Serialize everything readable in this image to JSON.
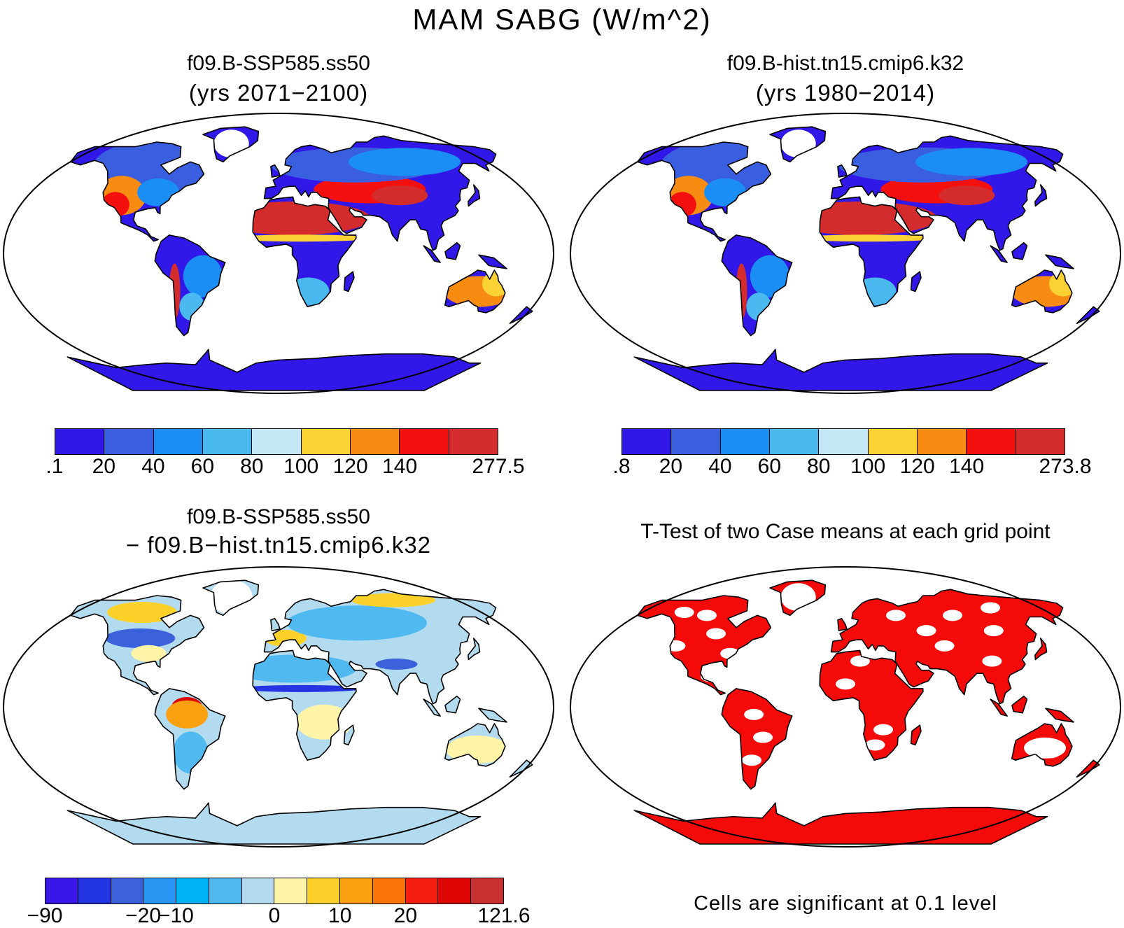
{
  "main_title": "MAM SABG (W/m^2)",
  "panels": [
    {
      "title": "f09.B-SSP585.ss50",
      "subtitle": "(yrs 2071−2100)"
    },
    {
      "title": "f09.B-hist.tn15.cmip6.k32",
      "subtitle": "(yrs 1980−2014)"
    },
    {
      "title": "f09.B-SSP585.ss50",
      "subtitle": "− f09.B−hist.tn15.cmip6.k32"
    },
    {
      "title": "T-Test of two Case means at each grid point",
      "subtitle": ""
    }
  ],
  "colorbars": {
    "cb1": {
      "colors": [
        "#3218e8",
        "#3a5ee0",
        "#1b8ef5",
        "#4ab9f0",
        "#c5e6f5",
        "#fbd233",
        "#f88c12",
        "#f51010",
        "#d42c2c"
      ],
      "labels": [
        ".1",
        "20",
        "40",
        "60",
        "80",
        "100",
        "120",
        "140",
        "277.5"
      ]
    },
    "cb2": {
      "colors": [
        "#3218e8",
        "#3a5ee0",
        "#1b8ef5",
        "#4ab9f0",
        "#c5e6f5",
        "#fbd233",
        "#f88c12",
        "#f51010",
        "#d42c2c"
      ],
      "labels": [
        ".8",
        "20",
        "40",
        "60",
        "80",
        "100",
        "120",
        "140",
        "273.8"
      ]
    },
    "cb3": {
      "colors": [
        "#3a16e8",
        "#2335e2",
        "#3b62da",
        "#2a95f2",
        "#00b2f5",
        "#50baf0",
        "#b3dbf0",
        "#fff4a8",
        "#fcd22a",
        "#fba010",
        "#f8740a",
        "#f51e10",
        "#de0505",
        "#c93030"
      ],
      "labels": [
        "−90",
        "−20",
        "−10",
        "0",
        "10",
        "20",
        "121.6"
      ]
    }
  },
  "significance_note": "Cells are significant at 0.1 level",
  "palette": {
    "ttest_red": "#f50a0a",
    "land_cool": "#3a5ee0",
    "land_hot": "#d42c2c"
  }
}
